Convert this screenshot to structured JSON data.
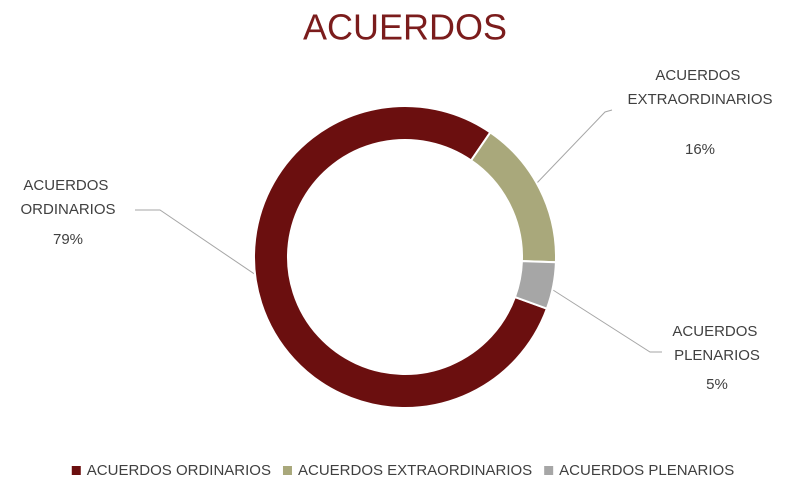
{
  "chart_data": {
    "type": "donut",
    "title": "ACUERDOS",
    "categories": [
      "ACUERDOS ORDINARIOS",
      "ACUERDOS EXTRAORDINARIOS",
      "ACUERDOS PLENARIOS"
    ],
    "values": [
      79,
      16,
      5
    ],
    "value_labels": [
      "79%",
      "16%",
      "5%"
    ],
    "colors": [
      "#6b0f0f",
      "#a9a87b",
      "#a6a6a6"
    ],
    "legend": "bottom"
  }
}
